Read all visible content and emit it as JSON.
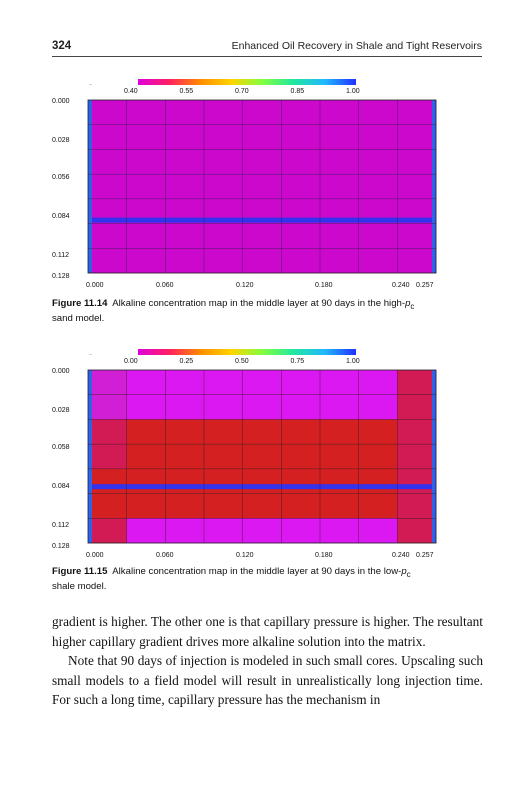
{
  "header": {
    "page_number": "324",
    "running_title": "Enhanced Oil Recovery in Shale and Tight Reservoirs"
  },
  "figures": [
    {
      "id": "fig-11-14",
      "colorbar_ticks": [
        "0.40",
        "0.55",
        "0.70",
        "0.85",
        "1.00"
      ],
      "y_ticks": [
        "0.000",
        "0.028",
        "0.056",
        "0.084",
        "0.112",
        "0.128"
      ],
      "x_ticks": [
        "0.000",
        "0.060",
        "0.120",
        "0.180",
        "0.240",
        "0.257"
      ],
      "caption_label": "Figure 11.14",
      "caption_text": "Alkaline concentration map in the middle layer at 90 days in the high-",
      "caption_symbol": "p",
      "caption_subscript": "c",
      "caption_continuation": "sand model.",
      "colors": {
        "main": "#cc08cc",
        "band": "#3333ee",
        "edge": "#2e62e8",
        "grid": "#3a1a5a"
      }
    },
    {
      "id": "fig-11-15",
      "colorbar_ticks": [
        "0.00",
        "0.25",
        "0.50",
        "0.75",
        "1.00"
      ],
      "y_ticks": [
        "0.000",
        "0.028",
        "0.058",
        "0.084",
        "0.112",
        "0.128"
      ],
      "x_ticks": [
        "0.000",
        "0.060",
        "0.120",
        "0.180",
        "0.240",
        "0.257"
      ],
      "caption_label": "Figure 11.15",
      "caption_text": "Alkaline concentration map in the middle layer at 90 days in the low-",
      "caption_symbol": "p",
      "caption_subscript": "c",
      "caption_continuation": "shale model.",
      "colors": {
        "magenta": "#d11fd6",
        "light_magenta": "#dc18f2",
        "crimson": "#d21a55",
        "red": "#d42020",
        "band": "#3333ee",
        "edge": "#2e62e8",
        "grid": "#3a1a2a"
      }
    }
  ],
  "colorbar_colors": [
    "#e000e0",
    "#ff2060",
    "#ff8c00",
    "#ffd400",
    "#80ff40",
    "#20e8a0",
    "#20b8ff",
    "#2030ff"
  ],
  "body": {
    "paragraph_1": "gradient is higher. The other one is that capillary pressure is higher. The resultant higher capillary gradient drives more alkaline solution into the matrix.",
    "paragraph_2": "Note that 90 days of injection is modeled in such small cores. Upscaling such small models to a field model will result in unrealistically long injection time. For such a long time, capillary pressure has the mechanism in"
  }
}
